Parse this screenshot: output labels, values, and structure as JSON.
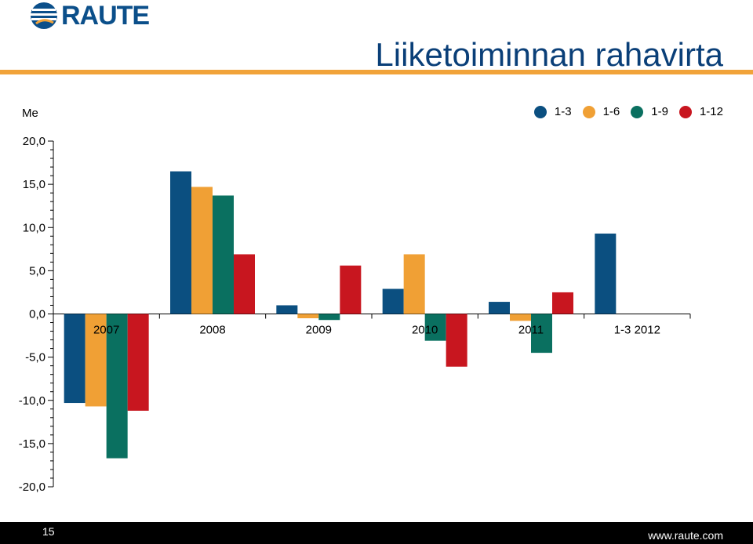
{
  "brand": {
    "logo_text": "RAUTE",
    "logo_color": "#0b4f8a"
  },
  "slide": {
    "title": "Liiketoiminnan rahavirta",
    "accent": "#f1a33a",
    "page_number": "15",
    "url": "www.raute.com"
  },
  "chart_data": {
    "type": "bar",
    "unit_label": "Me",
    "categories": [
      "2007",
      "2008",
      "2009",
      "2010",
      "2011",
      "1-3 2012"
    ],
    "series": [
      {
        "name": "1-3",
        "color": "#0b4f80",
        "values": [
          -10.3,
          16.5,
          1.0,
          2.9,
          1.4,
          9.3
        ]
      },
      {
        "name": "1-6",
        "color": "#f0a035",
        "values": [
          -10.7,
          14.7,
          -0.5,
          6.9,
          -0.8,
          null
        ]
      },
      {
        "name": "1-9",
        "color": "#0a7060",
        "values": [
          -16.7,
          13.7,
          -0.7,
          -3.1,
          -4.5,
          null
        ]
      },
      {
        "name": "1-12",
        "color": "#c8161f",
        "values": [
          -11.2,
          6.9,
          5.6,
          -6.1,
          2.5,
          null
        ]
      }
    ],
    "ylim": [
      -20,
      20
    ],
    "yticks": [
      20,
      15,
      10,
      5,
      0,
      -5,
      -10,
      -15,
      -20
    ],
    "ytick_labels": [
      "20,0",
      "15,0",
      "10,0",
      "5,0",
      "0,0",
      "-5,0",
      "-10,0",
      "-15,0",
      "-20,0"
    ],
    "legend_position": "top-right",
    "grid": false
  }
}
